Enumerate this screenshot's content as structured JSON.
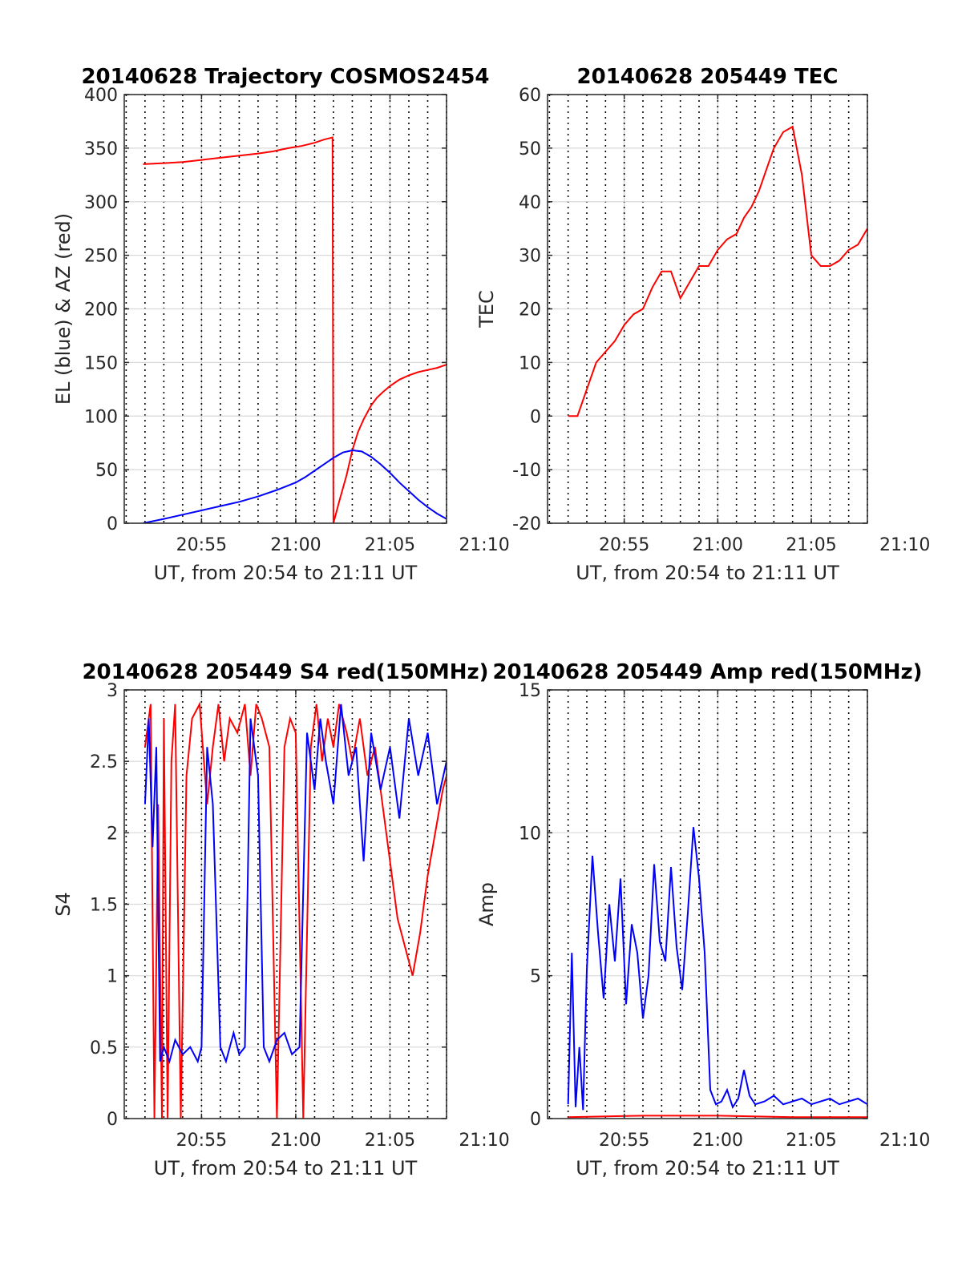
{
  "chart_data": [
    {
      "type": "line",
      "title": "20140628 Trajectory COSMOS2454",
      "xlabel": "UT, from 20:54 to 21:11 UT",
      "ylabel": "EL (blue) & AZ (red)",
      "xlim": [
        20.9,
        38.0
      ],
      "ylim": [
        0,
        400
      ],
      "x_ticks": [
        25,
        30,
        35,
        40
      ],
      "x_tick_labels": [
        "20:55",
        "21:00",
        "21:05",
        "21:10"
      ],
      "y_ticks": [
        0,
        50,
        100,
        150,
        200,
        250,
        300,
        350,
        400
      ],
      "grid": true,
      "series": [
        {
          "color": "#ff0000",
          "x": [
            21.9,
            23.0,
            24.0,
            25.0,
            26.0,
            27.0,
            28.0,
            28.8,
            29.6,
            30.3,
            31.0,
            31.5,
            31.95,
            32.0,
            32.3,
            32.7,
            33.0,
            33.3,
            33.6,
            34.0,
            34.3,
            34.6,
            35.0,
            35.5,
            36.0,
            36.5,
            37.0,
            37.5,
            38.0
          ],
          "y": [
            335,
            336,
            337,
            339,
            341,
            343,
            345,
            347,
            350,
            352,
            355,
            358,
            360,
            0,
            20,
            45,
            68,
            85,
            97,
            110,
            117,
            122,
            128,
            134,
            138,
            141,
            143,
            145,
            148
          ]
        },
        {
          "color": "#0000ff",
          "x": [
            21.9,
            23.0,
            24.0,
            25.0,
            26.0,
            27.0,
            28.0,
            29.0,
            30.0,
            30.5,
            31.0,
            31.5,
            32.0,
            32.5,
            33.0,
            33.5,
            34.0,
            34.5,
            35.0,
            35.5,
            36.0,
            36.5,
            37.0,
            37.5,
            38.0
          ],
          "y": [
            0,
            4,
            8,
            12,
            16,
            20,
            25,
            31,
            38,
            43,
            49,
            55,
            61,
            66,
            68,
            67,
            62,
            55,
            47,
            38,
            30,
            22,
            15,
            9,
            4
          ]
        }
      ]
    },
    {
      "type": "line",
      "title": "20140628 205449 TEC",
      "xlabel": "UT, from 20:54 to 21:11 UT",
      "ylabel": "TEC",
      "xlim": [
        20.9,
        38.0
      ],
      "ylim": [
        -20,
        60
      ],
      "x_ticks": [
        25,
        30,
        35,
        40
      ],
      "x_tick_labels": [
        "20:55",
        "21:00",
        "21:05",
        "21:10"
      ],
      "y_ticks": [
        -20,
        -10,
        0,
        10,
        20,
        30,
        40,
        50,
        60
      ],
      "grid": true,
      "series": [
        {
          "color": "#ff0000",
          "x": [
            22.0,
            22.5,
            23.0,
            23.5,
            24.0,
            24.5,
            25.0,
            25.5,
            26.0,
            26.5,
            27.0,
            27.5,
            28.0,
            28.5,
            29.0,
            29.5,
            30.0,
            30.5,
            31.0,
            31.4,
            31.8,
            32.2,
            32.6,
            33.0,
            33.5,
            34.0,
            34.5,
            35.0,
            35.5,
            36.0,
            36.5,
            37.0,
            37.5,
            38.0
          ],
          "y": [
            0,
            0,
            5,
            10,
            12,
            14,
            17,
            19,
            20,
            24,
            27,
            27,
            22,
            25,
            28,
            28,
            31,
            33,
            34,
            37,
            39,
            42,
            46,
            50,
            53,
            54,
            45,
            30,
            28,
            28,
            29,
            31,
            32,
            35
          ]
        }
      ]
    },
    {
      "type": "line",
      "title": "20140628 205449 S4 red(150MHz)",
      "xlabel": "UT, from 20:54 to 21:11 UT",
      "ylabel": "S4",
      "xlim": [
        20.9,
        38.0
      ],
      "ylim": [
        0,
        3
      ],
      "x_ticks": [
        25,
        30,
        35,
        40
      ],
      "x_tick_labels": [
        "20:55",
        "21:00",
        "21:05",
        "21:10"
      ],
      "y_ticks": [
        0,
        0.5,
        1,
        1.5,
        2,
        2.5,
        3
      ],
      "grid": true,
      "series": [
        {
          "color": "#ff0000",
          "x": [
            22.0,
            22.3,
            22.5,
            22.7,
            22.9,
            23.0,
            23.2,
            23.4,
            23.6,
            23.9,
            24.2,
            24.5,
            24.9,
            25.3,
            25.6,
            25.9,
            26.2,
            26.5,
            26.9,
            27.3,
            27.6,
            27.9,
            28.2,
            28.6,
            29.0,
            29.4,
            29.7,
            30.0,
            30.4,
            30.8,
            31.1,
            31.4,
            31.7,
            32.0,
            32.3,
            32.7,
            33.0,
            33.4,
            33.8,
            34.2,
            34.6,
            35.0,
            35.4,
            35.8,
            36.2,
            36.6,
            37.0,
            37.4,
            37.8,
            38.0
          ],
          "y": [
            2.6,
            2.9,
            0,
            2.2,
            0,
            2.8,
            0,
            2.5,
            2.9,
            0,
            2.4,
            2.8,
            2.9,
            2.2,
            2.6,
            2.9,
            2.5,
            2.8,
            2.7,
            2.9,
            2.4,
            2.9,
            2.8,
            2.6,
            0,
            2.6,
            2.8,
            2.7,
            0,
            2.6,
            2.9,
            2.5,
            2.8,
            2.6,
            2.9,
            2.7,
            2.5,
            2.8,
            2.4,
            2.6,
            2.2,
            1.8,
            1.4,
            1.2,
            1.0,
            1.3,
            1.7,
            2.0,
            2.3,
            2.4
          ]
        },
        {
          "color": "#0000ff",
          "x": [
            22.0,
            22.2,
            22.4,
            22.6,
            22.8,
            23.0,
            23.3,
            23.6,
            24.0,
            24.4,
            24.8,
            25.0,
            25.3,
            25.6,
            26.0,
            26.3,
            26.7,
            27.0,
            27.3,
            27.6,
            28.0,
            28.3,
            28.6,
            29.0,
            29.4,
            29.8,
            30.2,
            30.6,
            31.0,
            31.3,
            31.6,
            32.0,
            32.4,
            32.8,
            33.2,
            33.6,
            34.0,
            34.5,
            35.0,
            35.5,
            36.0,
            36.5,
            37.0,
            37.5,
            38.0
          ],
          "y": [
            2.2,
            2.8,
            1.9,
            2.6,
            0.4,
            0.5,
            0.4,
            0.55,
            0.45,
            0.5,
            0.4,
            0.5,
            2.6,
            2.2,
            0.5,
            0.4,
            0.6,
            0.45,
            0.5,
            2.8,
            2.4,
            0.5,
            0.4,
            0.55,
            0.6,
            0.45,
            0.5,
            2.7,
            2.3,
            2.8,
            2.5,
            2.2,
            2.9,
            2.4,
            2.6,
            1.8,
            2.7,
            2.3,
            2.6,
            2.1,
            2.8,
            2.4,
            2.7,
            2.2,
            2.5
          ]
        }
      ]
    },
    {
      "type": "line",
      "title": "20140628 205449 Amp red(150MHz)",
      "xlabel": "UT, from 20:54 to 21:11 UT",
      "ylabel": "Amp",
      "xlim": [
        20.9,
        38.0
      ],
      "ylim": [
        0,
        15
      ],
      "x_ticks": [
        25,
        30,
        35,
        40
      ],
      "x_tick_labels": [
        "20:55",
        "21:00",
        "21:05",
        "21:10"
      ],
      "y_ticks": [
        0,
        5,
        10,
        15
      ],
      "grid": true,
      "series": [
        {
          "color": "#ff0000",
          "x": [
            22.0,
            26.0,
            30.0,
            34.0,
            38.0
          ],
          "y": [
            0.05,
            0.1,
            0.1,
            0.05,
            0.05
          ]
        },
        {
          "color": "#0000ff",
          "x": [
            22.0,
            22.2,
            22.4,
            22.6,
            22.8,
            23.0,
            23.3,
            23.6,
            23.9,
            24.2,
            24.5,
            24.8,
            25.1,
            25.4,
            25.7,
            26.0,
            26.3,
            26.6,
            26.9,
            27.2,
            27.5,
            27.8,
            28.1,
            28.4,
            28.7,
            29.0,
            29.3,
            29.6,
            29.9,
            30.2,
            30.5,
            30.8,
            31.1,
            31.4,
            31.7,
            32.0,
            32.5,
            33.0,
            33.5,
            34.0,
            34.5,
            35.0,
            35.5,
            36.0,
            36.5,
            37.0,
            37.5,
            38.0
          ],
          "y": [
            0.5,
            5.8,
            0.4,
            2.5,
            0.3,
            5.2,
            9.2,
            6.5,
            4.2,
            7.5,
            5.5,
            8.4,
            4.0,
            6.8,
            5.8,
            3.5,
            5.0,
            8.9,
            6.2,
            5.5,
            8.8,
            6.0,
            4.5,
            7.2,
            10.2,
            8.4,
            5.8,
            1.0,
            0.5,
            0.6,
            1.0,
            0.4,
            0.7,
            1.7,
            0.8,
            0.5,
            0.6,
            0.8,
            0.5,
            0.6,
            0.7,
            0.5,
            0.6,
            0.7,
            0.5,
            0.6,
            0.7,
            0.5
          ]
        }
      ]
    }
  ]
}
